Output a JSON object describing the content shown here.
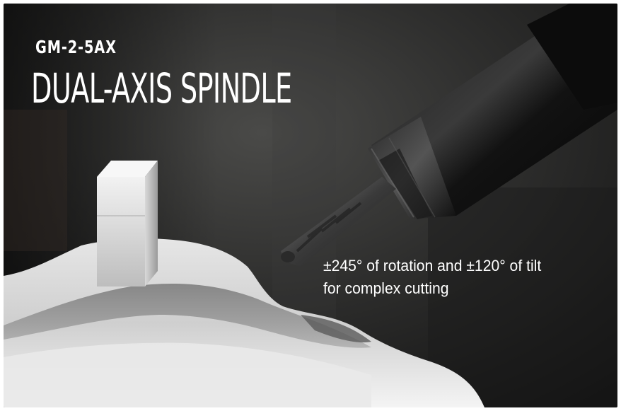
{
  "model_code": "GM-2-5AX",
  "headline": "DUAL-AXIS SPINDLE",
  "caption": {
    "line1": "±245° of rotation and ±120° of tilt",
    "line2": "for complex cutting"
  }
}
